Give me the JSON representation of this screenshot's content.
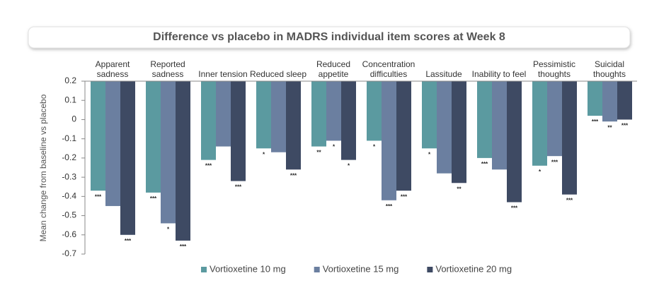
{
  "chart_data": {
    "type": "bar",
    "title": "Difference vs placebo in MADRS individual item scores at Week 8",
    "y_label": "Mean change from baseline vs placebo",
    "categories": [
      "Apparent sadness",
      "Reported sadness",
      "Inner tension",
      "Reduced sleep",
      "Reduced appetite",
      "Concentration difficulties",
      "Lassitude",
      "Inability to feel",
      "Pessimistic thoughts",
      "Suicidal thoughts"
    ],
    "x_axis_position": "top",
    "ylim": [
      -0.7,
      0.2
    ],
    "yticks": [
      0.2,
      0.1,
      0,
      -0.1,
      -0.2,
      -0.3,
      -0.4,
      -0.5,
      -0.6,
      -0.7
    ],
    "legend": "bottom",
    "series": [
      {
        "name": "Vortioxetine 10 mg",
        "color": "#5b9aa0",
        "values": [
          -0.37,
          -0.38,
          -0.21,
          -0.15,
          -0.14,
          -0.11,
          -0.15,
          -0.2,
          -0.24,
          0.02
        ],
        "significance": [
          "***",
          "***",
          "***",
          "*",
          "**",
          "*",
          "*",
          "***",
          "*",
          "***"
        ]
      },
      {
        "name": "Vortioxetine 15 mg",
        "color": "#6b7fa0",
        "values": [
          -0.45,
          -0.54,
          -0.14,
          -0.17,
          -0.11,
          -0.42,
          -0.28,
          -0.26,
          -0.19,
          -0.01
        ],
        "significance": [
          null,
          "*",
          null,
          null,
          "*",
          "***",
          null,
          null,
          "***",
          "**"
        ]
      },
      {
        "name": "Vortioxetine 20 mg",
        "color": "#3e4a63",
        "values": [
          -0.6,
          -0.63,
          -0.32,
          -0.26,
          -0.21,
          -0.37,
          -0.33,
          -0.43,
          -0.39,
          0.0
        ],
        "significance": [
          "***",
          "***",
          "***",
          "***",
          "*",
          "***",
          "**",
          "***",
          "***",
          "***"
        ]
      }
    ]
  }
}
